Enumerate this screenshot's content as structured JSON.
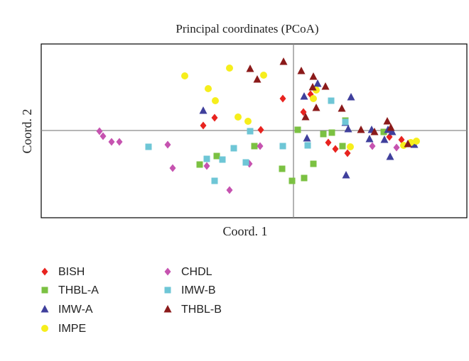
{
  "chart_data": {
    "type": "scatter",
    "title": "Principal coordinates (PCoA)",
    "x_label": "Coord. 1",
    "y_label": "Coord. 2",
    "xlim": [
      -3.55,
      2.44
    ],
    "ylim": [
      -1.23,
      1.22
    ],
    "series": [
      {
        "name": "BISH",
        "color": "#e8231f",
        "marker": "diamond",
        "x": [
          -0.15,
          -1.27,
          -1.11,
          -0.46,
          0.14,
          0.24,
          0.49,
          0.59,
          0.76,
          1.35,
          1.52
        ],
        "values": [
          0.45,
          0.07,
          0.18,
          0.01,
          0.26,
          0.51,
          -0.17,
          -0.26,
          -0.32,
          -0.09,
          -0.13
        ]
      },
      {
        "name": "THBL-A",
        "color": "#7bc142",
        "marker": "square",
        "x": [
          -1.32,
          -1.08,
          -0.55,
          -0.16,
          -0.02,
          0.15,
          0.28,
          0.06,
          0.42,
          0.54,
          0.69,
          0.73,
          1.27
        ],
        "values": [
          -0.48,
          -0.36,
          -0.22,
          -0.54,
          -0.71,
          -0.67,
          -0.47,
          0.01,
          -0.05,
          -0.03,
          -0.22,
          0.14,
          -0.02
        ]
      },
      {
        "name": "IMW-A",
        "color": "#3f3f9c",
        "marker": "triangle",
        "x": [
          -1.27,
          0.15,
          0.19,
          0.34,
          0.73,
          0.77,
          0.81,
          1.1,
          1.07,
          1.28,
          1.33,
          1.36,
          0.74,
          1.39,
          1.7
        ],
        "values": [
          0.28,
          0.48,
          -0.11,
          0.66,
          0.11,
          0.02,
          0.47,
          0.01,
          -0.12,
          -0.13,
          0.01,
          -0.37,
          -0.63,
          -0.02,
          -0.2
        ]
      },
      {
        "name": "IMPE",
        "color": "#f6ee1c",
        "marker": "circle",
        "x": [
          -1.53,
          -0.9,
          -0.42,
          -1.2,
          -1.1,
          -0.78,
          -0.64,
          0.28,
          0.32,
          0.8,
          1.65,
          1.73,
          1.55
        ],
        "values": [
          0.77,
          0.88,
          0.78,
          0.59,
          0.42,
          0.19,
          0.13,
          0.45,
          0.57,
          -0.23,
          -0.17,
          -0.15,
          -0.21
        ]
      },
      {
        "name": "CHDL",
        "color": "#c653b0",
        "marker": "diamond",
        "x": [
          -2.73,
          -2.68,
          -2.56,
          -2.45,
          -1.77,
          -1.7,
          -1.22,
          -0.9,
          -0.62,
          -0.47,
          1.11,
          1.45
        ],
        "values": [
          -0.01,
          -0.08,
          -0.16,
          -0.16,
          -0.2,
          -0.53,
          -0.5,
          -0.84,
          -0.47,
          -0.22,
          -0.22,
          -0.24
        ]
      },
      {
        "name": "IMW-B",
        "color": "#6ec6d6",
        "marker": "square",
        "x": [
          -2.04,
          -1.22,
          -1.11,
          -1.0,
          -0.84,
          -0.67,
          -0.61,
          -0.15,
          0.2,
          0.53,
          0.73
        ],
        "values": [
          -0.23,
          -0.4,
          -0.71,
          -0.41,
          -0.25,
          -0.45,
          -0.01,
          -0.22,
          -0.21,
          0.42,
          0.12
        ]
      },
      {
        "name": "THBL-B",
        "color": "#8b1a1a",
        "marker": "triangle",
        "x": [
          -0.61,
          -0.51,
          -0.14,
          0.11,
          0.28,
          0.27,
          0.32,
          0.17,
          0.45,
          0.68,
          0.95,
          1.14,
          1.32,
          1.37,
          1.61
        ],
        "values": [
          0.87,
          0.72,
          0.97,
          0.84,
          0.76,
          0.61,
          0.32,
          0.19,
          0.62,
          0.31,
          0.01,
          -0.02,
          0.13,
          0.04,
          -0.19
        ]
      }
    ]
  }
}
